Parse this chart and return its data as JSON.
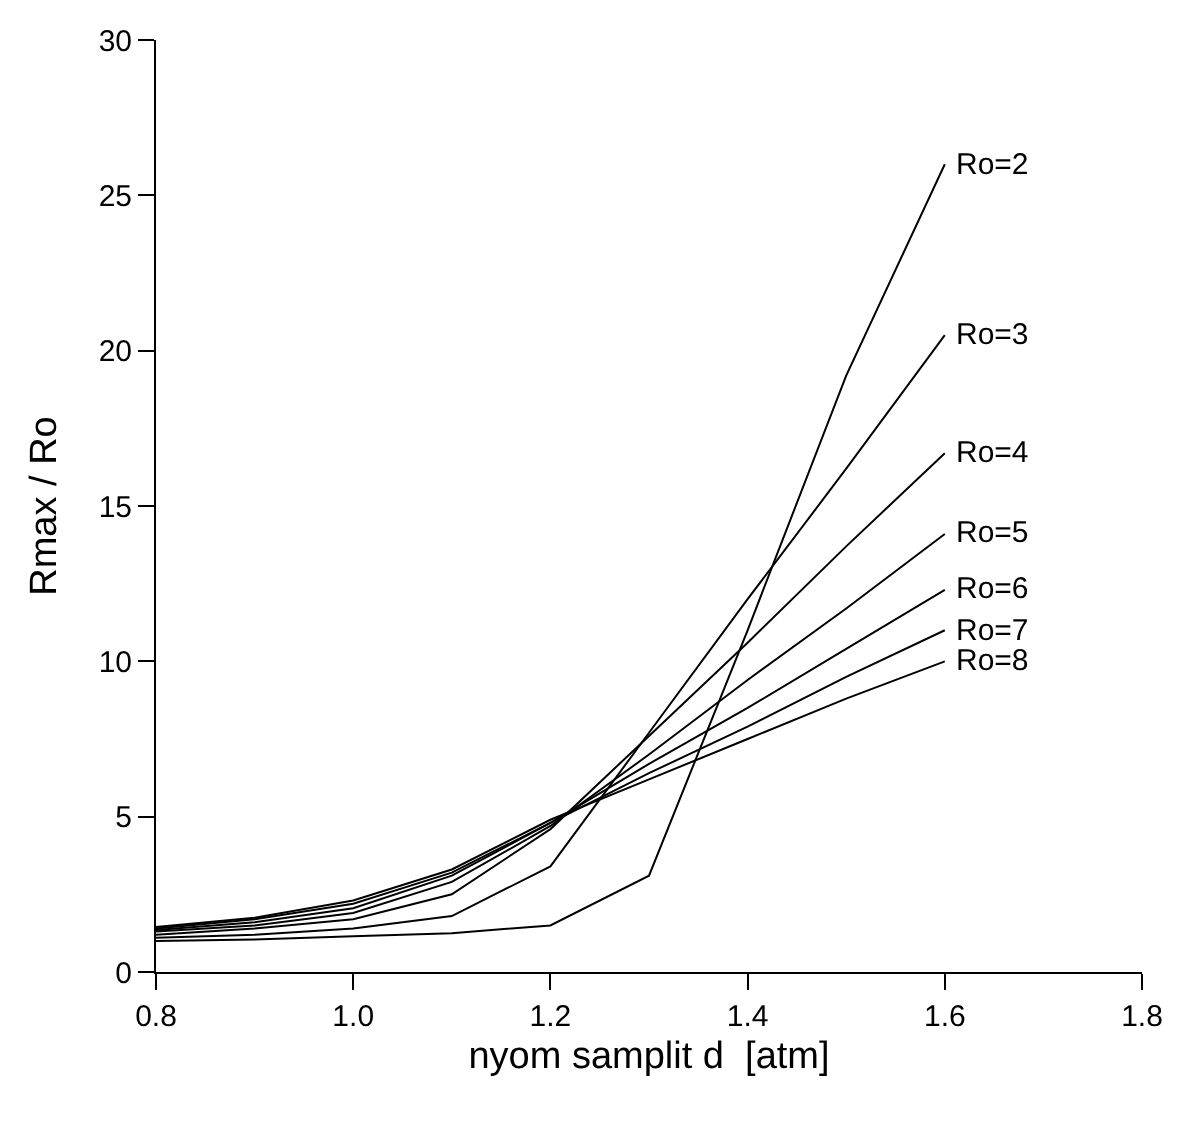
{
  "chart_data": {
    "type": "line",
    "xlabel": "nyom samplit d  [atm]",
    "ylabel": "Rmax / Ro",
    "x": [
      0.8,
      0.9,
      1.0,
      1.1,
      1.2,
      1.3,
      1.4,
      1.5,
      1.6
    ],
    "series": [
      {
        "name": "Ro=2",
        "color": "#000000",
        "values": [
          1.0,
          1.05,
          1.15,
          1.25,
          1.5,
          3.1,
          11.0,
          19.2,
          26.0
        ]
      },
      {
        "name": "Ro=3",
        "color": "#000000",
        "values": [
          1.1,
          1.2,
          1.4,
          1.8,
          3.4,
          7.7,
          12.0,
          16.2,
          20.5
        ]
      },
      {
        "name": "Ro=4",
        "color": "#000000",
        "values": [
          1.2,
          1.4,
          1.7,
          2.5,
          4.6,
          7.6,
          10.6,
          13.7,
          16.7
        ]
      },
      {
        "name": "Ro=5",
        "color": "#000000",
        "values": [
          1.3,
          1.5,
          1.9,
          2.9,
          4.7,
          7.0,
          9.4,
          11.7,
          14.1
        ]
      },
      {
        "name": "Ro=6",
        "color": "#000000",
        "values": [
          1.35,
          1.6,
          2.05,
          3.1,
          4.8,
          6.7,
          8.5,
          10.4,
          12.3
        ]
      },
      {
        "name": "Ro=7",
        "color": "#000000",
        "values": [
          1.4,
          1.7,
          2.2,
          3.2,
          4.8,
          6.4,
          7.9,
          9.5,
          11.0
        ]
      },
      {
        "name": "Ro=8",
        "color": "#000000",
        "values": [
          1.45,
          1.75,
          2.3,
          3.3,
          4.9,
          6.2,
          7.5,
          8.8,
          10.0
        ]
      }
    ],
    "xlim": [
      0.8,
      1.8
    ],
    "xticks": [
      {
        "value": 0.8,
        "label": "0.8"
      },
      {
        "value": 1.0,
        "label": "1.0"
      },
      {
        "value": 1.2,
        "label": "1.2"
      },
      {
        "value": 1.4,
        "label": "1.4"
      },
      {
        "value": 1.6,
        "label": "1.6"
      },
      {
        "value": 1.8,
        "label": "1.8"
      }
    ],
    "ylim": [
      0,
      30
    ],
    "yticks": [
      0,
      5,
      10,
      15,
      20,
      25,
      30
    ],
    "grid": false,
    "legend": false,
    "marker": "none",
    "line_style": "solid"
  }
}
